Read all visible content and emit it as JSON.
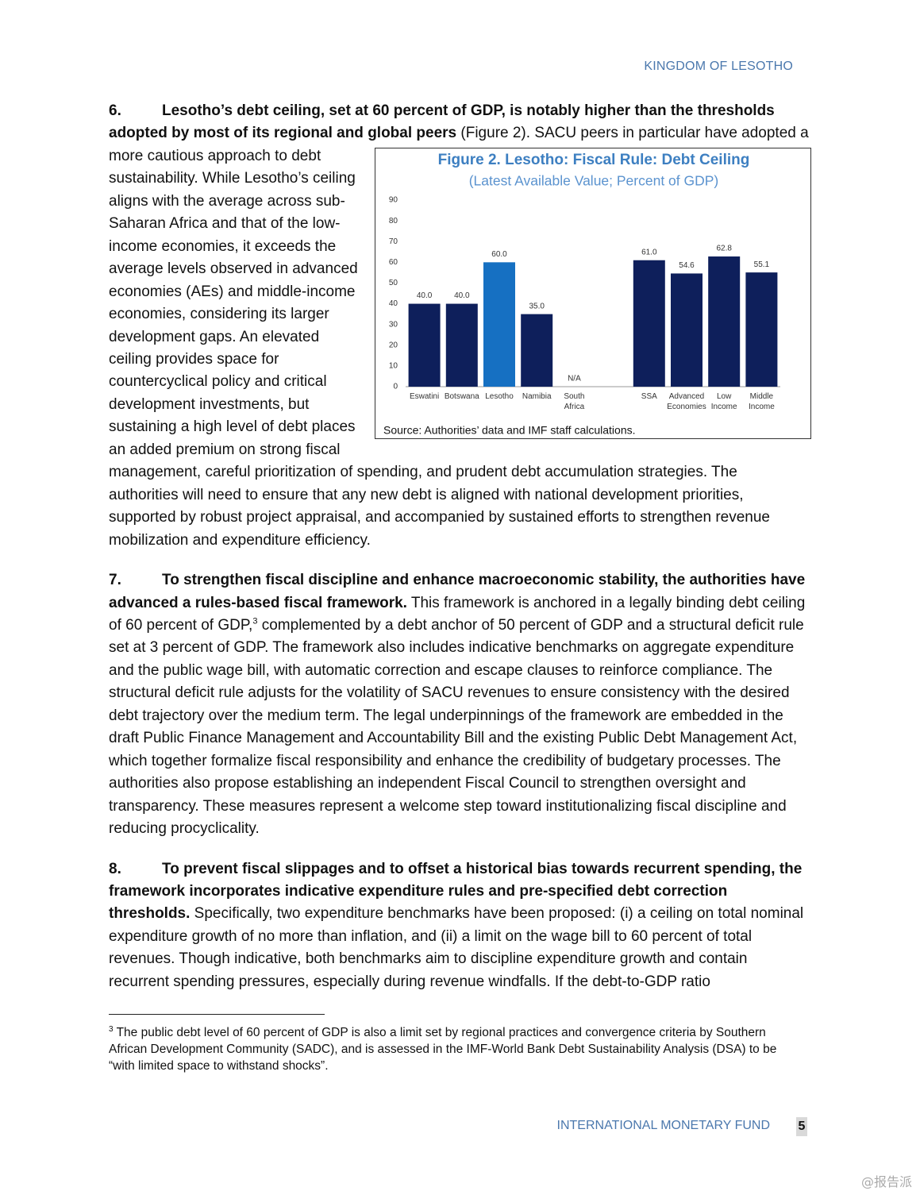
{
  "header": {
    "title": "KINGDOM OF LESOTHO"
  },
  "paragraphs": [
    {
      "number": "6.",
      "lead": "Lesotho’s debt ceiling, set at 60 percent of GDP, is notably higher than the thresholds adopted by most of its regional and global peers",
      "text": " (Figure 2). SACU peers in particular have adopted a more cautious approach to debt sustainability. While Lesotho’s ceiling aligns with the average across sub-Saharan Africa and that of the low-income economies, it exceeds the average levels observed in advanced economies (AEs) and middle-income economies, considering its larger development gaps. An elevated ceiling provides space for countercyclical policy and critical development investments, but sustaining a high level of debt places an added premium on strong fiscal management, careful prioritization of spending, and prudent debt accumulation strategies. The authorities will need to ensure that any new debt is aligned with national development priorities, supported by robust project appraisal, and accompanied by sustained efforts to strengthen revenue mobilization and expenditure efficiency."
    },
    {
      "number": "7.",
      "lead": "To strengthen fiscal discipline and enhance macroeconomic stability, the authorities have advanced a rules-based fiscal framework.",
      "text": " This framework is anchored in a legally binding debt ceiling of 60 percent of GDP,",
      "footnote_ref": "3",
      "text_continued": " complemented by a debt anchor of 50 percent of GDP and a structural deficit rule set at 3 percent of GDP. The framework also includes indicative benchmarks on aggregate expenditure and the public wage bill, with automatic correction and escape clauses to reinforce compliance. The structural deficit rule adjusts for the volatility of SACU revenues to ensure consistency with the desired debt trajectory over the medium term. The legal underpinnings of the framework are embedded in the draft Public Finance Management and Accountability Bill and the existing Public Debt Management Act, which together formalize fiscal responsibility and enhance the credibility of budgetary processes. The authorities also propose establishing an independent Fiscal Council to strengthen oversight and transparency. These measures represent a welcome step toward institutionalizing fiscal discipline and reducing procyclicality."
    },
    {
      "number": "8.",
      "lead": "To prevent fiscal slippages and to offset a historical bias towards recurrent spending, the framework incorporates indicative expenditure rules and pre-specified debt correction thresholds.",
      "text": " Specifically, two expenditure benchmarks have been proposed: (i) a ceiling on total nominal expenditure growth of no more than inflation, and (ii) a limit on the wage bill to 60 percent of total revenues. Though indicative, both benchmarks aim to discipline expenditure growth and contain recurrent spending pressures, especially during revenue windfalls. If the debt-to-GDP ratio"
    }
  ],
  "chart_data": {
    "type": "bar",
    "title": "Figure 2. Lesotho: Fiscal Rule: Debt Ceiling",
    "subtitle": "(Latest Available Value; Percent of GDP)",
    "source": "Source: Authorities’ data and IMF staff calculations.",
    "categories": [
      "Eswatini",
      "Botswana",
      "Lesotho",
      "Namibia",
      "South Africa",
      null,
      "SSA",
      "Advanced Economies",
      "Low Income",
      "Middle Income"
    ],
    "values": [
      40,
      40,
      60,
      35,
      null,
      null,
      61,
      54.6,
      62.8,
      55.1
    ],
    "value_labels": [
      "40.0",
      "40.0",
      "60.0",
      "35.0",
      "N/A",
      null,
      "61.0",
      "54.6",
      "62.8",
      "55.1"
    ],
    "colors": [
      "#0e1f5b",
      "#0e1f5b",
      "#1670c2",
      "#0e1f5b",
      "#0e1f5b",
      "#0e1f5b",
      "#0e1f5b",
      "#0e1f5b",
      "#0e1f5b",
      "#0e1f5b"
    ],
    "ylim": [
      0,
      90
    ],
    "yticks": [
      0,
      10,
      20,
      30,
      40,
      50,
      60,
      70,
      80,
      90
    ],
    "grid": false
  },
  "footnote": {
    "number": "3",
    "text": " The public debt level of 60 percent of GDP is also a limit set by regional practices and convergence criteria by Southern African Development Community (SADC), and is assessed in the IMF-World Bank Debt Sustainability Analysis (DSA) to be “with limited space to withstand shocks”."
  },
  "footer": {
    "label": "INTERNATIONAL MONETARY FUND",
    "page": "5"
  },
  "watermark": "@报告派"
}
